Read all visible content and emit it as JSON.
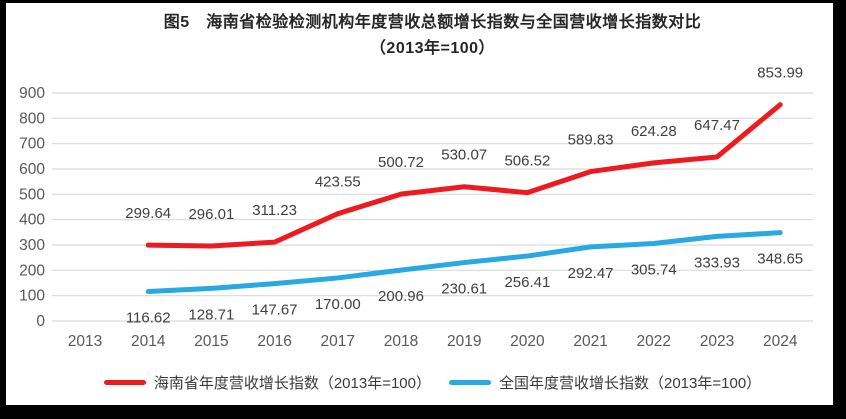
{
  "chart_data": {
    "type": "line",
    "title": "图5　海南省检验检测机构年度营收总额增长指数与全国营收增长指数对比",
    "subtitle": "（2013年=100）",
    "x_categories": [
      "2013",
      "2014",
      "2015",
      "2016",
      "2017",
      "2018",
      "2019",
      "2020",
      "2021",
      "2022",
      "2023",
      "2024"
    ],
    "y_ticks": [
      0,
      100,
      200,
      300,
      400,
      500,
      600,
      700,
      800,
      900
    ],
    "ylim": [
      0,
      900
    ],
    "grid": "horizontal-only",
    "gridline_color": "#d9d9d9",
    "axis_label_color": "#595959",
    "data_label_color": "#404040",
    "legend_position": "bottom",
    "series": [
      {
        "id": "hainan",
        "name": "海南省年度营收增长指数（2013年=100）",
        "color": "#ed1b20",
        "start_category": "2014",
        "x_start_index": 1,
        "label_position": "above",
        "values": [
          299.64,
          296.01,
          311.23,
          423.55,
          500.72,
          530.07,
          506.52,
          589.83,
          624.28,
          647.47,
          853.99
        ]
      },
      {
        "id": "national",
        "name": "全国年度营收增长指数（2013年=100）",
        "color": "#29a9e1",
        "start_category": "2014",
        "x_start_index": 1,
        "label_position": "below",
        "values": [
          116.62,
          128.71,
          147.67,
          170.0,
          200.96,
          230.61,
          256.41,
          292.47,
          305.74,
          333.93,
          348.65
        ]
      }
    ]
  }
}
